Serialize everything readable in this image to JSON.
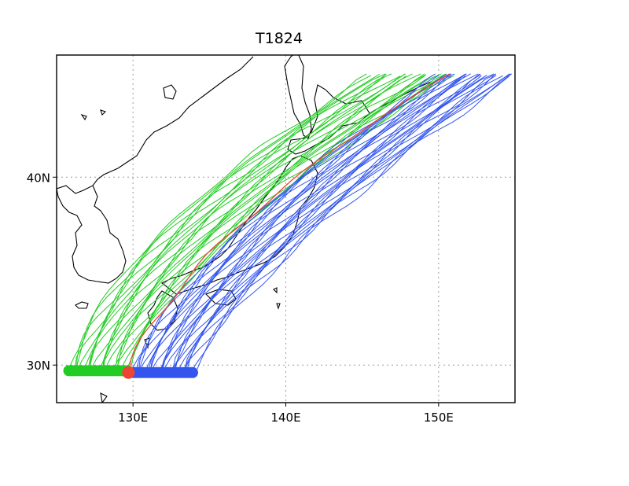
{
  "title": "T1824",
  "map": {
    "lon_range": [
      125,
      155
    ],
    "lat_range": [
      28,
      46.5
    ],
    "grid": true,
    "x_ticks": [
      {
        "value": 130,
        "label": "130E"
      },
      {
        "value": 140,
        "label": "140E"
      },
      {
        "value": 150,
        "label": "150E"
      }
    ],
    "y_ticks": [
      {
        "value": 30,
        "label": "30N"
      },
      {
        "value": 40,
        "label": "40N"
      }
    ]
  },
  "colors": {
    "coast": "#000000",
    "grid": "#9a9a9a",
    "green_tracks": "#22cc22",
    "blue_tracks": "#3355ee",
    "red_track": "#ee4433"
  },
  "chart_data": {
    "type": "line",
    "title": "T1824",
    "xlim": [
      125,
      155
    ],
    "ylim": [
      28,
      46.5
    ],
    "description_note": "",
    "series": [
      {
        "group": "green",
        "count": 22,
        "start_lon_range": [
          125.8,
          129.6
        ],
        "start_lat": 29.7,
        "end_lat": 45.5,
        "end_lon_range": [
          145.5,
          151
        ]
      },
      {
        "group": "blue",
        "count": 26,
        "start_lon_range": [
          129.9,
          133.9
        ],
        "start_lat": 29.6,
        "end_lat": 45.5,
        "end_lon_range": [
          150,
          155
        ]
      },
      {
        "group": "red",
        "count": 1,
        "start_lon": 129.7,
        "start_lat": 29.6,
        "end_lon": 150.6,
        "end_lat": 45.5
      }
    ]
  }
}
